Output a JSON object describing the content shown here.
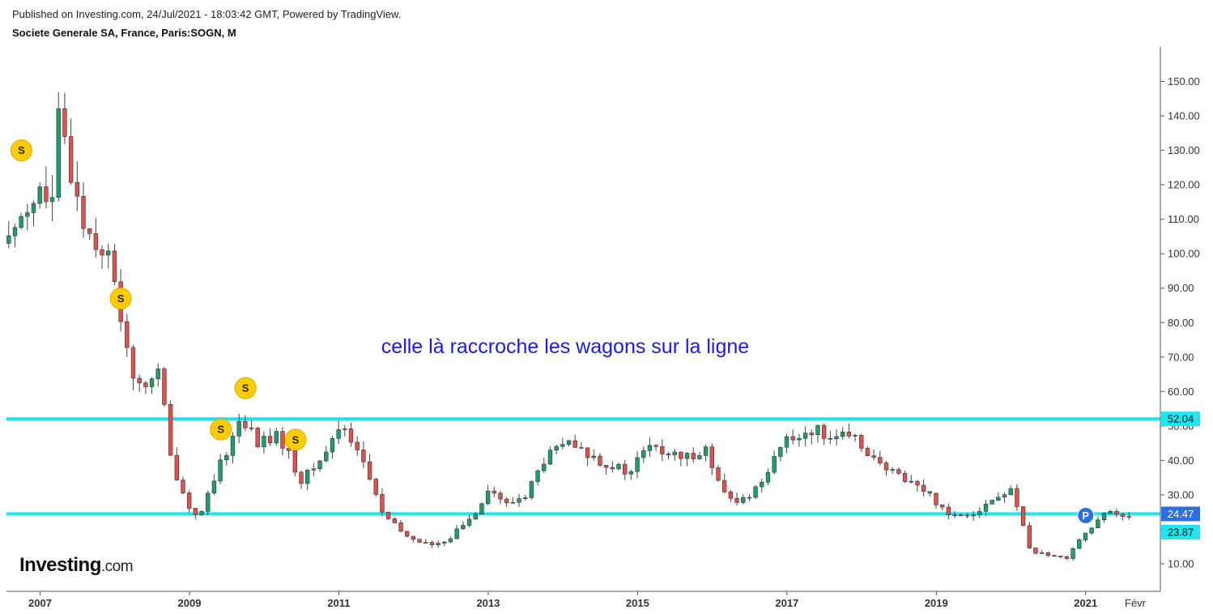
{
  "header": {
    "published": "Published on Investing.com, 24/Jul/2021 - 18:03:42 GMT, Powered by TradingView.",
    "symbol": "Societe Generale SA, France, Paris:SOGN, M"
  },
  "logo": {
    "main": "Investing",
    "suffix": ".com"
  },
  "colors": {
    "up": "#1e9e6a",
    "down": "#e0504c",
    "hline": "#1ee6f0",
    "annotation": "#1a1aee",
    "split": "#ffcc00",
    "label_blue": "#2b6fe3"
  },
  "chart_data": {
    "type": "candlestick",
    "interval": "M",
    "ylim": [
      2,
      160
    ],
    "yticks": [
      10,
      20,
      30,
      40,
      50,
      60,
      70,
      80,
      90,
      100,
      110,
      120,
      130,
      140,
      150
    ],
    "ytick_labels": [
      "10.00",
      "20.00",
      "30.00",
      "40.00",
      "50.00",
      "60.00",
      "70.00",
      "80.00",
      "90.00",
      "100.00",
      "110.00",
      "120.00",
      "130.00",
      "140.00",
      "150.00"
    ],
    "xlim": [
      2006.55,
      2022.0
    ],
    "xticks": [
      {
        "x": 2007,
        "label": "2007"
      },
      {
        "x": 2009,
        "label": "2009"
      },
      {
        "x": 2011,
        "label": "2011"
      },
      {
        "x": 2013,
        "label": "2013"
      },
      {
        "x": 2015,
        "label": "2015"
      },
      {
        "x": 2017,
        "label": "2017"
      },
      {
        "x": 2019,
        "label": "2019"
      },
      {
        "x": 2021,
        "label": "2021"
      },
      {
        "x": 2022.1,
        "label": "Févr"
      }
    ],
    "horizontal_lines": [
      {
        "value": 52.04,
        "label": "52.04"
      },
      {
        "value": 24.47,
        "label": "24.47"
      }
    ],
    "price_labels": [
      {
        "value": 24.47,
        "label": "24.47"
      },
      {
        "value": 23.87,
        "label": "23.87"
      }
    ],
    "annotation": "celle là raccroche les wagons sur la ligne",
    "markers": [
      {
        "x": 2006.75,
        "y": 130,
        "label": "S"
      },
      {
        "x": 2008.08,
        "y": 87,
        "label": "S"
      },
      {
        "x": 2009.42,
        "y": 49,
        "label": "S"
      },
      {
        "x": 2009.75,
        "y": 61,
        "label": "S"
      },
      {
        "x": 2010.42,
        "y": 46,
        "label": "S"
      },
      {
        "x": 2021.0,
        "y": 24,
        "label": "P"
      }
    ],
    "anchors": [
      [
        2006.58,
        103
      ],
      [
        2006.75,
        113
      ],
      [
        2007.0,
        118
      ],
      [
        2007.16,
        113
      ],
      [
        2007.25,
        139
      ],
      [
        2007.4,
        125
      ],
      [
        2007.6,
        108
      ],
      [
        2007.9,
        100
      ],
      [
        2008.05,
        85
      ],
      [
        2008.3,
        60
      ],
      [
        2008.6,
        66
      ],
      [
        2008.75,
        40
      ],
      [
        2009.0,
        26
      ],
      [
        2009.15,
        24
      ],
      [
        2009.4,
        38
      ],
      [
        2009.7,
        53
      ],
      [
        2009.9,
        45
      ],
      [
        2010.2,
        47
      ],
      [
        2010.5,
        34
      ],
      [
        2010.75,
        40
      ],
      [
        2011.05,
        51
      ],
      [
        2011.3,
        41
      ],
      [
        2011.6,
        24
      ],
      [
        2011.9,
        18
      ],
      [
        2012.3,
        15
      ],
      [
        2012.5,
        18
      ],
      [
        2012.8,
        24
      ],
      [
        2013.0,
        32
      ],
      [
        2013.25,
        27
      ],
      [
        2013.5,
        30
      ],
      [
        2013.75,
        40
      ],
      [
        2014.0,
        45
      ],
      [
        2014.3,
        42
      ],
      [
        2014.6,
        39
      ],
      [
        2014.9,
        36
      ],
      [
        2015.1,
        44
      ],
      [
        2015.4,
        42
      ],
      [
        2015.6,
        40
      ],
      [
        2015.9,
        44
      ],
      [
        2016.1,
        32
      ],
      [
        2016.3,
        27
      ],
      [
        2016.6,
        32
      ],
      [
        2016.9,
        44
      ],
      [
        2017.3,
        49
      ],
      [
        2017.7,
        47
      ],
      [
        2018.0,
        45
      ],
      [
        2018.3,
        37
      ],
      [
        2018.6,
        35
      ],
      [
        2018.9,
        30
      ],
      [
        2019.2,
        24
      ],
      [
        2019.5,
        25
      ],
      [
        2019.8,
        29
      ],
      [
        2020.0,
        31
      ],
      [
        2020.15,
        23
      ],
      [
        2020.25,
        14
      ],
      [
        2020.5,
        12
      ],
      [
        2020.75,
        12
      ],
      [
        2020.9,
        17
      ],
      [
        2021.1,
        21
      ],
      [
        2021.3,
        25
      ],
      [
        2021.55,
        24
      ]
    ]
  }
}
